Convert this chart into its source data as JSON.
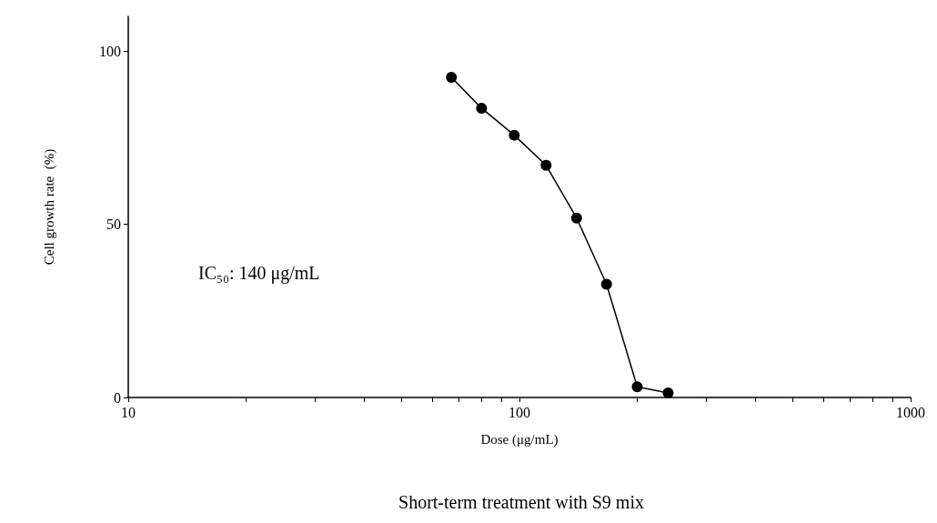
{
  "chart_data": {
    "type": "line",
    "title": "Short-term treatment with S9 mix",
    "xlabel": "Dose (μg/mL)",
    "ylabel": "Cell growth rate  (%)",
    "annotations": [
      "IC₅₀: 140 μg/mL"
    ],
    "x": [
      67,
      80,
      97,
      117,
      140,
      167,
      200,
      240
    ],
    "series": [
      {
        "color": "#000000",
        "values": [
          92.4,
          83.5,
          75.7,
          67.0,
          51.8,
          32.7,
          3.1,
          1.3
        ]
      }
    ],
    "log": "x",
    "xlim": [
      10,
      1000
    ],
    "xticks": [
      10,
      {
        "value": 20,
        "label": null
      },
      {
        "value": 30,
        "label": null
      },
      {
        "value": 40,
        "label": null
      },
      {
        "value": 50,
        "label": null
      },
      {
        "value": 60,
        "label": null
      },
      {
        "value": 70,
        "label": null
      },
      {
        "value": 80,
        "label": null
      },
      {
        "value": 90,
        "label": null
      },
      100,
      {
        "value": 200,
        "label": null
      },
      {
        "value": 300,
        "label": null
      },
      {
        "value": 400,
        "label": null
      },
      {
        "value": 500,
        "label": null
      },
      {
        "value": 600,
        "label": null
      },
      {
        "value": 700,
        "label": null
      },
      {
        "value": 800,
        "label": null
      },
      {
        "value": 900,
        "label": null
      },
      1000
    ],
    "ylim": [
      0,
      110
    ],
    "yticks": [
      0,
      50,
      100
    ],
    "grid": false,
    "marker": "circle",
    "line_style": "solid"
  }
}
